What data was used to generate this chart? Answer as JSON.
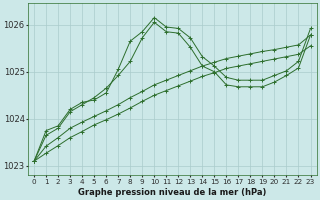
{
  "title": "Graphe pression niveau de la mer (hPa)",
  "bg_color": "#cce8e8",
  "grid_color": "#aacccc",
  "line_color": "#2d6e2d",
  "x_labels": [
    "0",
    "1",
    "2",
    "3",
    "4",
    "5",
    "6",
    "7",
    "8",
    "9",
    "10",
    "11",
    "12",
    "13",
    "14",
    "15",
    "16",
    "17",
    "18",
    "19",
    "20",
    "21",
    "22",
    "23"
  ],
  "ylim": [
    1022.8,
    1026.45
  ],
  "yticks": [
    1023,
    1024,
    1025,
    1026
  ],
  "series": [
    [
      1023.1,
      1023.75,
      1023.85,
      1024.2,
      1024.35,
      1024.4,
      1024.55,
      1025.05,
      1025.65,
      1025.85,
      1026.15,
      1025.95,
      1025.92,
      1025.72,
      1025.32,
      1025.12,
      1024.88,
      1024.82,
      1024.82,
      1024.82,
      1024.92,
      1025.02,
      1025.22,
      1025.92
    ],
    [
      1023.1,
      1023.65,
      1023.8,
      1024.15,
      1024.3,
      1024.45,
      1024.65,
      1024.92,
      1025.22,
      1025.72,
      1026.05,
      1025.85,
      1025.82,
      1025.52,
      1025.12,
      1025.0,
      1024.72,
      1024.68,
      1024.68,
      1024.68,
      1024.78,
      1024.92,
      1025.08,
      1025.78
    ],
    [
      1023.1,
      1023.42,
      1023.6,
      1023.8,
      1023.93,
      1024.05,
      1024.17,
      1024.3,
      1024.45,
      1024.58,
      1024.72,
      1024.82,
      1024.92,
      1025.02,
      1025.12,
      1025.2,
      1025.28,
      1025.33,
      1025.38,
      1025.43,
      1025.47,
      1025.52,
      1025.57,
      1025.78
    ],
    [
      1023.1,
      1023.27,
      1023.43,
      1023.6,
      1023.73,
      1023.87,
      1023.98,
      1024.1,
      1024.23,
      1024.37,
      1024.5,
      1024.6,
      1024.7,
      1024.8,
      1024.9,
      1024.98,
      1025.07,
      1025.12,
      1025.17,
      1025.22,
      1025.27,
      1025.32,
      1025.37,
      1025.55
    ]
  ]
}
